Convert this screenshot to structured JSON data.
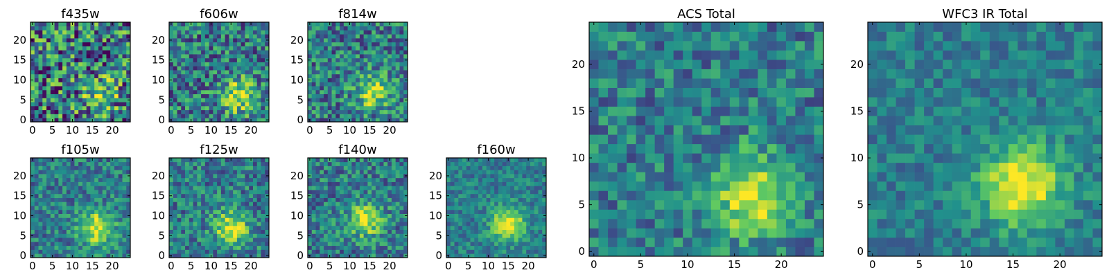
{
  "figure": {
    "background": "#ffffff",
    "colormap": "viridis",
    "colormap_stops": [
      "#440154",
      "#3b528b",
      "#21918c",
      "#5ec962",
      "#fde725"
    ]
  },
  "chart_data": [
    {
      "type": "heatmap",
      "title": "f435w",
      "grid_size": 25,
      "xticks": [
        "0",
        "5",
        "10",
        "15",
        "20"
      ],
      "yticks": [
        "0",
        "5",
        "10",
        "15",
        "20"
      ],
      "xlim": [
        0,
        24
      ],
      "ylim": [
        0,
        24
      ],
      "source_peak": [
        17,
        6
      ],
      "peak_intensity": 0.55,
      "noise_level": 0.9,
      "seed": 11
    },
    {
      "type": "heatmap",
      "title": "f606w",
      "grid_size": 25,
      "xticks": [
        "0",
        "5",
        "10",
        "15",
        "20"
      ],
      "yticks": [
        "0",
        "5",
        "10",
        "15",
        "20"
      ],
      "xlim": [
        0,
        24
      ],
      "ylim": [
        0,
        24
      ],
      "source_peak": [
        17,
        6
      ],
      "peak_intensity": 0.8,
      "noise_level": 0.65,
      "seed": 23
    },
    {
      "type": "heatmap",
      "title": "f814w",
      "grid_size": 25,
      "xticks": [
        "0",
        "5",
        "10",
        "15",
        "20"
      ],
      "yticks": [
        "0",
        "5",
        "10",
        "15",
        "20"
      ],
      "xlim": [
        0,
        24
      ],
      "ylim": [
        0,
        24
      ],
      "source_peak": [
        16,
        7
      ],
      "peak_intensity": 0.8,
      "noise_level": 0.6,
      "seed": 37
    },
    {
      "type": "heatmap",
      "title": "f105w",
      "grid_size": 25,
      "xticks": [
        "0",
        "5",
        "10",
        "15",
        "20"
      ],
      "yticks": [
        "0",
        "5",
        "10",
        "15",
        "20"
      ],
      "xlim": [
        0,
        24
      ],
      "ylim": [
        0,
        24
      ],
      "source_peak": [
        16,
        7
      ],
      "peak_intensity": 0.9,
      "noise_level": 0.45,
      "seed": 41
    },
    {
      "type": "heatmap",
      "title": "f125w",
      "grid_size": 25,
      "xticks": [
        "0",
        "5",
        "10",
        "15",
        "20"
      ],
      "yticks": [
        "0",
        "5",
        "10",
        "15",
        "20"
      ],
      "xlim": [
        0,
        24
      ],
      "ylim": [
        0,
        24
      ],
      "source_peak": [
        15,
        7
      ],
      "peak_intensity": 0.85,
      "noise_level": 0.5,
      "seed": 53
    },
    {
      "type": "heatmap",
      "title": "f140w",
      "grid_size": 25,
      "xticks": [
        "0",
        "5",
        "10",
        "15",
        "20"
      ],
      "yticks": [
        "0",
        "5",
        "10",
        "15",
        "20"
      ],
      "xlim": [
        0,
        24
      ],
      "ylim": [
        0,
        24
      ],
      "source_peak": [
        14,
        9
      ],
      "peak_intensity": 0.85,
      "noise_level": 0.5,
      "seed": 67
    },
    {
      "type": "heatmap",
      "title": "f160w",
      "grid_size": 25,
      "xticks": [
        "0",
        "5",
        "10",
        "15",
        "20"
      ],
      "yticks": [
        "0",
        "5",
        "10",
        "15",
        "20"
      ],
      "xlim": [
        0,
        24
      ],
      "ylim": [
        0,
        24
      ],
      "source_peak": [
        15,
        8
      ],
      "peak_intensity": 0.95,
      "noise_level": 0.35,
      "seed": 71
    },
    {
      "type": "heatmap",
      "title": "ACS Total",
      "grid_size": 25,
      "xticks": [
        "0",
        "5",
        "10",
        "15",
        "20"
      ],
      "yticks": [
        "0",
        "5",
        "10",
        "15",
        "20"
      ],
      "xlim": [
        0,
        24
      ],
      "ylim": [
        0,
        24
      ],
      "source_peak": [
        17,
        6
      ],
      "peak_intensity": 0.95,
      "noise_level": 0.45,
      "seed": 83
    },
    {
      "type": "heatmap",
      "title": "WFC3 IR Total",
      "grid_size": 25,
      "xticks": [
        "0",
        "5",
        "10",
        "15",
        "20"
      ],
      "yticks": [
        "0",
        "5",
        "10",
        "15",
        "20"
      ],
      "xlim": [
        0,
        24
      ],
      "ylim": [
        0,
        24
      ],
      "source_peak": [
        16,
        7
      ],
      "peak_intensity": 1.0,
      "noise_level": 0.3,
      "seed": 97
    }
  ]
}
